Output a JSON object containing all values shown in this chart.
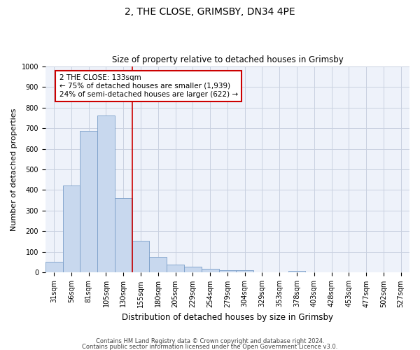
{
  "title": "2, THE CLOSE, GRIMSBY, DN34 4PE",
  "subtitle": "Size of property relative to detached houses in Grimsby",
  "xlabel": "Distribution of detached houses by size in Grimsby",
  "ylabel": "Number of detached properties",
  "bar_color": "#c8d8ee",
  "bar_edge_color": "#7a9ec8",
  "categories": [
    "31sqm",
    "56sqm",
    "81sqm",
    "105sqm",
    "130sqm",
    "155sqm",
    "180sqm",
    "205sqm",
    "229sqm",
    "254sqm",
    "279sqm",
    "304sqm",
    "329sqm",
    "353sqm",
    "378sqm",
    "403sqm",
    "428sqm",
    "453sqm",
    "477sqm",
    "502sqm",
    "527sqm"
  ],
  "values": [
    52,
    422,
    685,
    760,
    362,
    153,
    75,
    40,
    27,
    17,
    12,
    10,
    0,
    0,
    9,
    0,
    0,
    0,
    0,
    0,
    0
  ],
  "ylim": [
    0,
    1000
  ],
  "yticks": [
    0,
    100,
    200,
    300,
    400,
    500,
    600,
    700,
    800,
    900,
    1000
  ],
  "vline_color": "#cc0000",
  "annotation_text": "2 THE CLOSE: 133sqm\n← 75% of detached houses are smaller (1,939)\n24% of semi-detached houses are larger (622) →",
  "annotation_box_color": "#ffffff",
  "annotation_box_edge": "#cc0000",
  "footnote1": "Contains HM Land Registry data © Crown copyright and database right 2024.",
  "footnote2": "Contains public sector information licensed under the Open Government Licence v3.0.",
  "bg_color": "#eef2fa",
  "grid_color": "#c8d0e0",
  "title_fontsize": 10,
  "subtitle_fontsize": 8.5,
  "ylabel_fontsize": 8,
  "xlabel_fontsize": 8.5,
  "tick_fontsize": 7,
  "annotation_fontsize": 7.5,
  "footnote_fontsize": 6
}
